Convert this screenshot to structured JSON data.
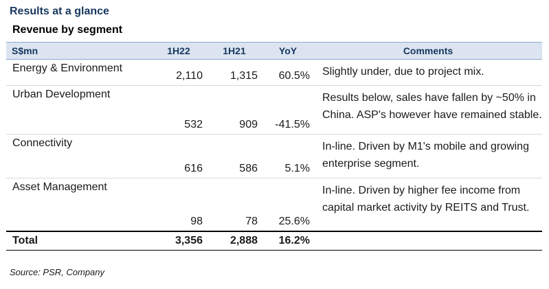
{
  "title": "Results at a glance",
  "subtitle": "Revenue by segment",
  "columns": {
    "segment": "S$mn",
    "h22": "1H22",
    "h21": "1H21",
    "yoy": "YoY",
    "comments": "Comments"
  },
  "rows": [
    {
      "segment": "Energy & Environment",
      "h22": "2,110",
      "h21": "1,315",
      "yoy": "60.5%",
      "comment": "Slightly under, due to project mix."
    },
    {
      "segment": "Urban Development",
      "h22": "532",
      "h21": "909",
      "yoy": "-41.5%",
      "comment": "Results below, sales have fallen by ~50% in China. ASP's however have remained stable."
    },
    {
      "segment": "Connectivity",
      "h22": "616",
      "h21": "586",
      "yoy": "5.1%",
      "comment": "In-line. Driven by M1's mobile and growing enterprise segment."
    },
    {
      "segment": "Asset Management",
      "h22": "98",
      "h21": "78",
      "yoy": "25.6%",
      "comment": "In-line. Driven by higher fee income from capital market activity by REITS and Trust."
    }
  ],
  "total": {
    "label": "Total",
    "h22": "3,356",
    "h21": "2,888",
    "yoy": "16.2%"
  },
  "source": "Source: PSR, Company"
}
